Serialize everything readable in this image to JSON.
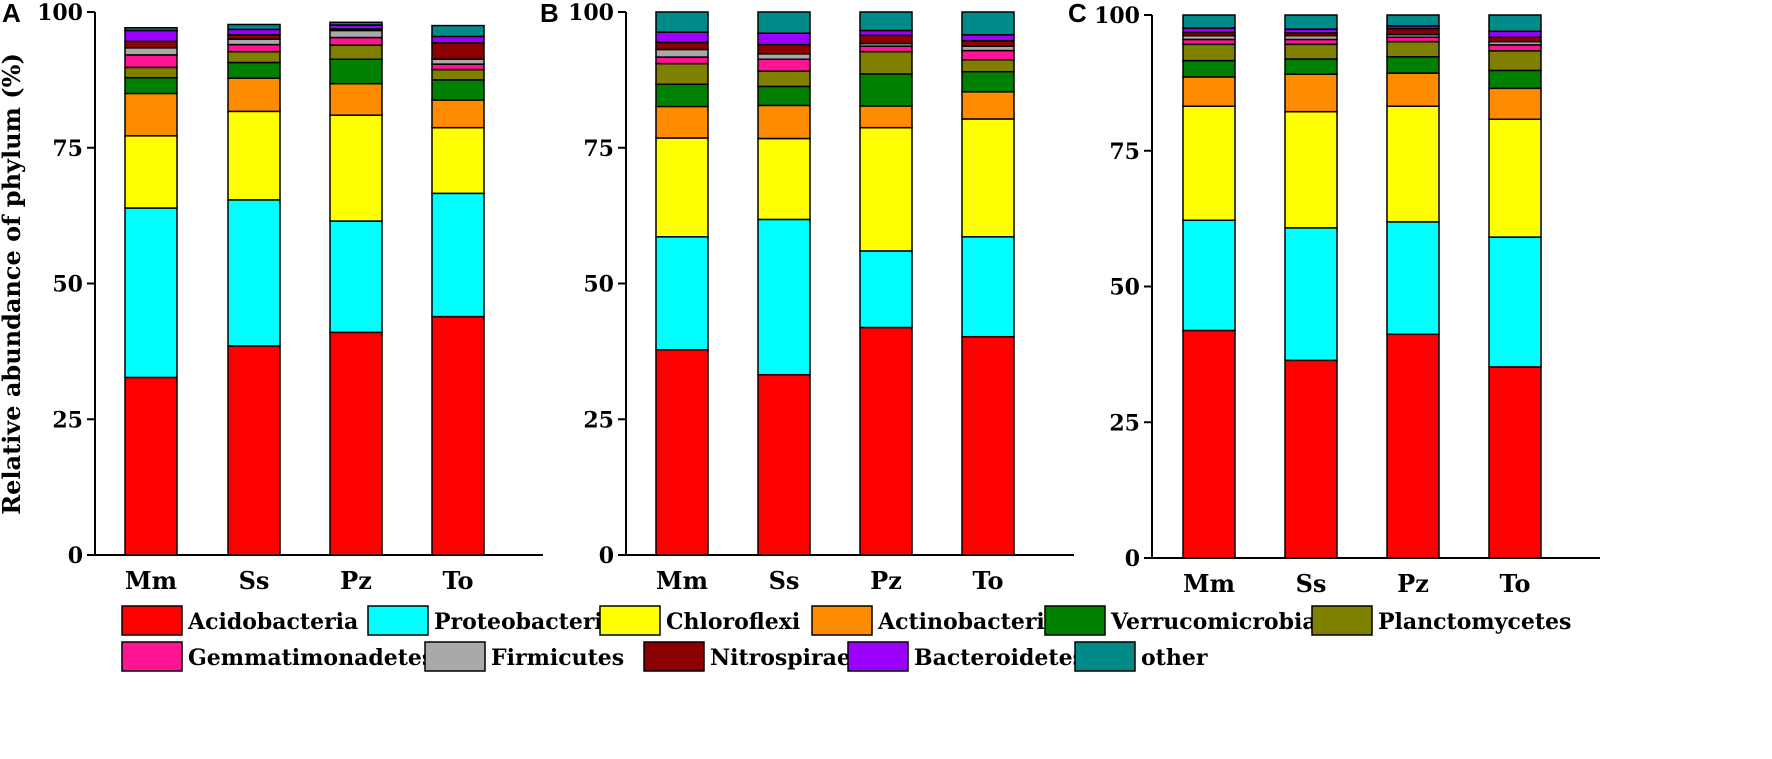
{
  "figure": {
    "ylabel": "Relative abundance of phylum (%)",
    "panel_letters": [
      "A",
      "B",
      "C"
    ]
  },
  "colors": {
    "Acidobacteria": "#ff0000",
    "Proteobacteria": "#00ffff",
    "Chloroflexi": "#ffff00",
    "Actinobacteria": "#ff8c00",
    "Verrucomicrobia": "#008000",
    "Planctomycetes": "#808000",
    "Gemmatimonadetes": "#ff1493",
    "Firmicutes": "#a9a9a9",
    "Nitrospirae": "#8b0000",
    "Bacteroidetes": "#9b00ff",
    "other": "#008b8b"
  },
  "chart_data": [
    {
      "type": "bar",
      "stacked": true,
      "panel": "A",
      "categories": [
        "Mm",
        "Ss",
        "Pz",
        "To"
      ],
      "ylabel": "Relative abundance of phylum (%)",
      "ylim": [
        0,
        100
      ],
      "yticks": [
        0,
        25,
        50,
        75,
        100
      ],
      "series": [
        {
          "name": "Acidobacteria",
          "values": [
            32.7,
            38.5,
            41.0,
            43.9
          ]
        },
        {
          "name": "Proteobacteria",
          "values": [
            31.2,
            26.9,
            20.5,
            22.7
          ]
        },
        {
          "name": "Chloroflexi",
          "values": [
            13.3,
            16.3,
            19.5,
            12.1
          ]
        },
        {
          "name": "Actinobacteria",
          "values": [
            7.8,
            6.1,
            5.8,
            5.1
          ]
        },
        {
          "name": "Verrucomicrobia",
          "values": [
            2.9,
            2.9,
            4.5,
            3.7
          ]
        },
        {
          "name": "Planctomycetes",
          "values": [
            1.9,
            2.0,
            2.6,
            1.9
          ]
        },
        {
          "name": "Gemmatimonadetes",
          "values": [
            2.3,
            1.3,
            1.4,
            1.0
          ]
        },
        {
          "name": "Firmicutes",
          "values": [
            1.3,
            1.0,
            1.3,
            0.9
          ]
        },
        {
          "name": "Nitrospirae",
          "values": [
            1.2,
            0.8,
            0.3,
            3.0
          ]
        },
        {
          "name": "Bacteroidetes",
          "values": [
            2.0,
            1.0,
            0.7,
            1.2
          ]
        },
        {
          "name": "other",
          "values": [
            0.5,
            0.9,
            0.5,
            2.0
          ]
        }
      ]
    },
    {
      "type": "bar",
      "stacked": true,
      "panel": "B",
      "categories": [
        "Mm",
        "Ss",
        "Pz",
        "To"
      ],
      "ylim": [
        0,
        100
      ],
      "yticks": [
        0,
        25,
        50,
        75,
        100
      ],
      "series": [
        {
          "name": "Acidobacteria",
          "values": [
            37.8,
            33.2,
            41.9,
            40.2
          ]
        },
        {
          "name": "Proteobacteria",
          "values": [
            20.8,
            28.6,
            14.1,
            18.4
          ]
        },
        {
          "name": "Chloroflexi",
          "values": [
            18.2,
            14.9,
            22.7,
            21.7
          ]
        },
        {
          "name": "Actinobacteria",
          "values": [
            5.8,
            6.1,
            4.0,
            5.0
          ]
        },
        {
          "name": "Verrucomicrobia",
          "values": [
            4.1,
            3.5,
            5.9,
            3.7
          ]
        },
        {
          "name": "Planctomycetes",
          "values": [
            3.8,
            2.8,
            4.1,
            2.2
          ]
        },
        {
          "name": "Gemmatimonadetes",
          "values": [
            1.2,
            2.2,
            1.0,
            1.7
          ]
        },
        {
          "name": "Firmicutes",
          "values": [
            1.4,
            1.0,
            0.5,
            0.8
          ]
        },
        {
          "name": "Nitrospirae",
          "values": [
            1.3,
            1.7,
            1.5,
            1.0
          ]
        },
        {
          "name": "Bacteroidetes",
          "values": [
            1.9,
            2.1,
            0.9,
            1.1
          ]
        },
        {
          "name": "other",
          "values": [
            3.7,
            3.9,
            3.4,
            4.2
          ]
        }
      ]
    },
    {
      "type": "bar",
      "stacked": true,
      "panel": "C",
      "categories": [
        "Mm",
        "Ss",
        "Pz",
        "To"
      ],
      "ylim": [
        0,
        100
      ],
      "yticks": [
        0,
        25,
        50,
        75,
        100
      ],
      "series": [
        {
          "name": "Acidobacteria",
          "values": [
            41.9,
            36.4,
            41.2,
            35.2
          ]
        },
        {
          "name": "Proteobacteria",
          "values": [
            20.3,
            24.4,
            20.7,
            23.9
          ]
        },
        {
          "name": "Chloroflexi",
          "values": [
            21.0,
            21.4,
            21.3,
            21.7
          ]
        },
        {
          "name": "Actinobacteria",
          "values": [
            5.4,
            6.9,
            6.1,
            5.7
          ]
        },
        {
          "name": "Verrucomicrobia",
          "values": [
            3.0,
            2.8,
            3.0,
            3.3
          ]
        },
        {
          "name": "Planctomycetes",
          "values": [
            3.0,
            2.7,
            2.8,
            3.6
          ]
        },
        {
          "name": "Gemmatimonadetes",
          "values": [
            0.9,
            0.9,
            0.8,
            1.1
          ]
        },
        {
          "name": "Firmicutes",
          "values": [
            0.7,
            0.7,
            0.5,
            0.6
          ]
        },
        {
          "name": "Nitrospirae",
          "values": [
            0.6,
            0.5,
            1.1,
            0.8
          ]
        },
        {
          "name": "Bacteroidetes",
          "values": [
            0.8,
            0.7,
            0.5,
            1.1
          ]
        },
        {
          "name": "other",
          "values": [
            2.4,
            2.6,
            2.0,
            3.0
          ]
        }
      ]
    }
  ],
  "legend": {
    "rows": [
      [
        "Acidobacteria",
        "Proteobacteria",
        "Chloroflexi",
        "Actinobacteria",
        "Verrucomicrobia",
        "Planctomycetes"
      ],
      [
        "Gemmatimonadetes",
        "Firmicutes",
        "Nitrospirae",
        "Bacteroidetes",
        "other"
      ]
    ]
  }
}
